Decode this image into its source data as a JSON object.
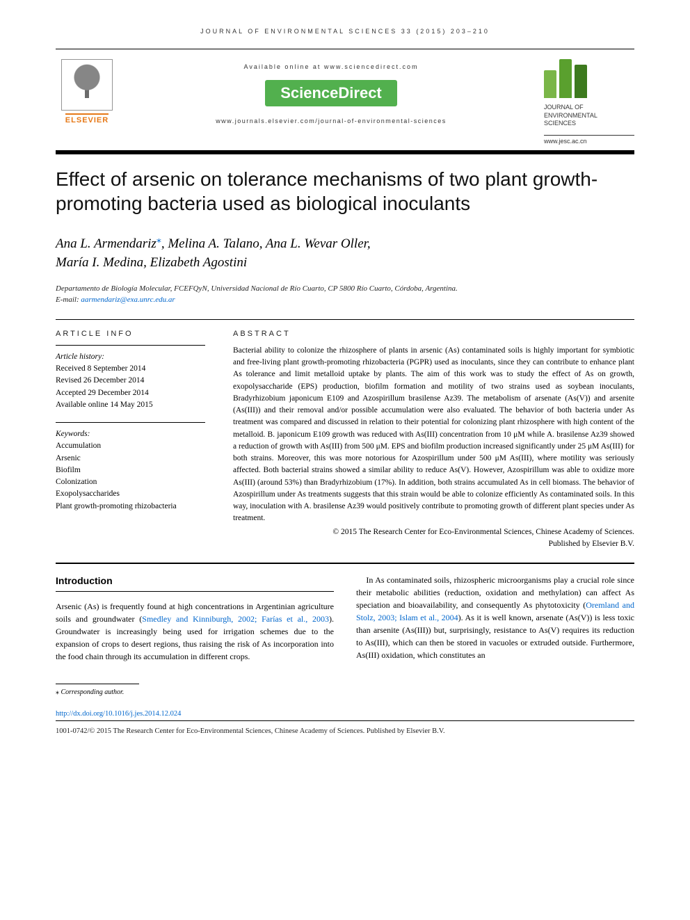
{
  "running_head": "JOURNAL OF ENVIRONMENTAL SCIENCES 33 (2015) 203–210",
  "header": {
    "available_online": "Available online at www.sciencedirect.com",
    "sciencedirect": "ScienceDirect",
    "journal_url": "www.journals.elsevier.com/journal-of-environmental-sciences",
    "elsevier": "ELSEVIER",
    "jes_name_l1": "JOURNAL OF",
    "jes_name_l2": "ENVIRONMENTAL",
    "jes_name_l3": "SCIENCES",
    "jes_url": "www.jesc.ac.cn"
  },
  "title": "Effect of arsenic on tolerance mechanisms of two plant growth-promoting bacteria used as biological inoculants",
  "authors_line1": "Ana L. Armendariz*, Melina A. Talano, Ana L. Wevar Oller,",
  "authors_line2": "María I. Medina, Elizabeth Agostini",
  "affiliation": "Departamento de Biología Molecular, FCEFQyN, Universidad Nacional de Río Cuarto, CP 5800 Río Cuarto, Córdoba, Argentina.",
  "email_label": "E-mail: ",
  "email": "aarmendariz@exa.unrc.edu.ar",
  "info_head": "ARTICLE INFO",
  "abs_head": "ABSTRACT",
  "history": {
    "label": "Article history:",
    "received": "Received 8 September 2014",
    "revised": "Revised 26 December 2014",
    "accepted": "Accepted 29 December 2014",
    "online": "Available online 14 May 2015"
  },
  "keywords": {
    "label": "Keywords:",
    "k1": "Accumulation",
    "k2": "Arsenic",
    "k3": "Biofilm",
    "k4": "Colonization",
    "k5": "Exopolysaccharides",
    "k6": "Plant growth-promoting rhizobacteria"
  },
  "abstract": "Bacterial ability to colonize the rhizosphere of plants in arsenic (As) contaminated soils is highly important for symbiotic and free-living plant growth-promoting rhizobacteria (PGPR) used as inoculants, since they can contribute to enhance plant As tolerance and limit metalloid uptake by plants. The aim of this work was to study the effect of As on growth, exopolysaccharide (EPS) production, biofilm formation and motility of two strains used as soybean inoculants, Bradyrhizobium japonicum E109 and Azospirillum brasilense Az39. The metabolism of arsenate (As(V)) and arsenite (As(III)) and their removal and/or possible accumulation were also evaluated. The behavior of both bacteria under As treatment was compared and discussed in relation to their potential for colonizing plant rhizosphere with high content of the metalloid. B. japonicum E109 growth was reduced with As(III) concentration from 10 μM while A. brasilense Az39 showed a reduction of growth with As(III) from 500 μM. EPS and biofilm production increased significantly under 25 μM As(III) for both strains. Moreover, this was more notorious for Azospirillum under 500 μM As(III), where motility was seriously affected. Both bacterial strains showed a similar ability to reduce As(V). However, Azospirillum was able to oxidize more As(III) (around 53%) than Bradyrhizobium (17%). In addition, both strains accumulated As in cell biomass. The behavior of Azospirillum under As treatments suggests that this strain would be able to colonize efficiently As contaminated soils. In this way, inoculation with A. brasilense Az39 would positively contribute to promoting growth of different plant species under As treatment.",
  "copyright_line1": "© 2015 The Research Center for Eco-Environmental Sciences, Chinese Academy of Sciences.",
  "copyright_line2": "Published by Elsevier B.V.",
  "intro_head": "Introduction",
  "body": {
    "p1a": "Arsenic (As) is frequently found at high concentrations in Argentinian agriculture soils and groundwater (",
    "c1": "Smedley and Kinniburgh, 2002; Farías et al., 2003",
    "p1b": "). Groundwater is increasingly being used for irrigation schemes due to the expansion of crops to desert regions, thus raising the risk of As incorporation into the food chain through its accumulation in different crops.",
    "p2a": "In As contaminated soils, rhizospheric microorganisms play a crucial role since their metabolic abilities (reduction, oxidation and methylation) can affect As speciation and bioavailability, and consequently As phytotoxicity (",
    "c2": "Oremland and Stolz, 2003; Islam et al., 2004",
    "p2b": "). As it is well known, arsenate (As(V)) is less toxic than arsenite (As(III)) but, surprisingly, resistance to As(V) requires its reduction to As(III), which can then be stored in vacuoles or extruded outside. Furthermore, As(III) oxidation, which constitutes an"
  },
  "footnote": "* Corresponding author.",
  "doi": "http://dx.doi.org/10.1016/j.jes.2014.12.024",
  "rights": "1001-0742/© 2015 The Research Center for Eco-Environmental Sciences, Chinese Academy of Sciences. Published by Elsevier B.V."
}
